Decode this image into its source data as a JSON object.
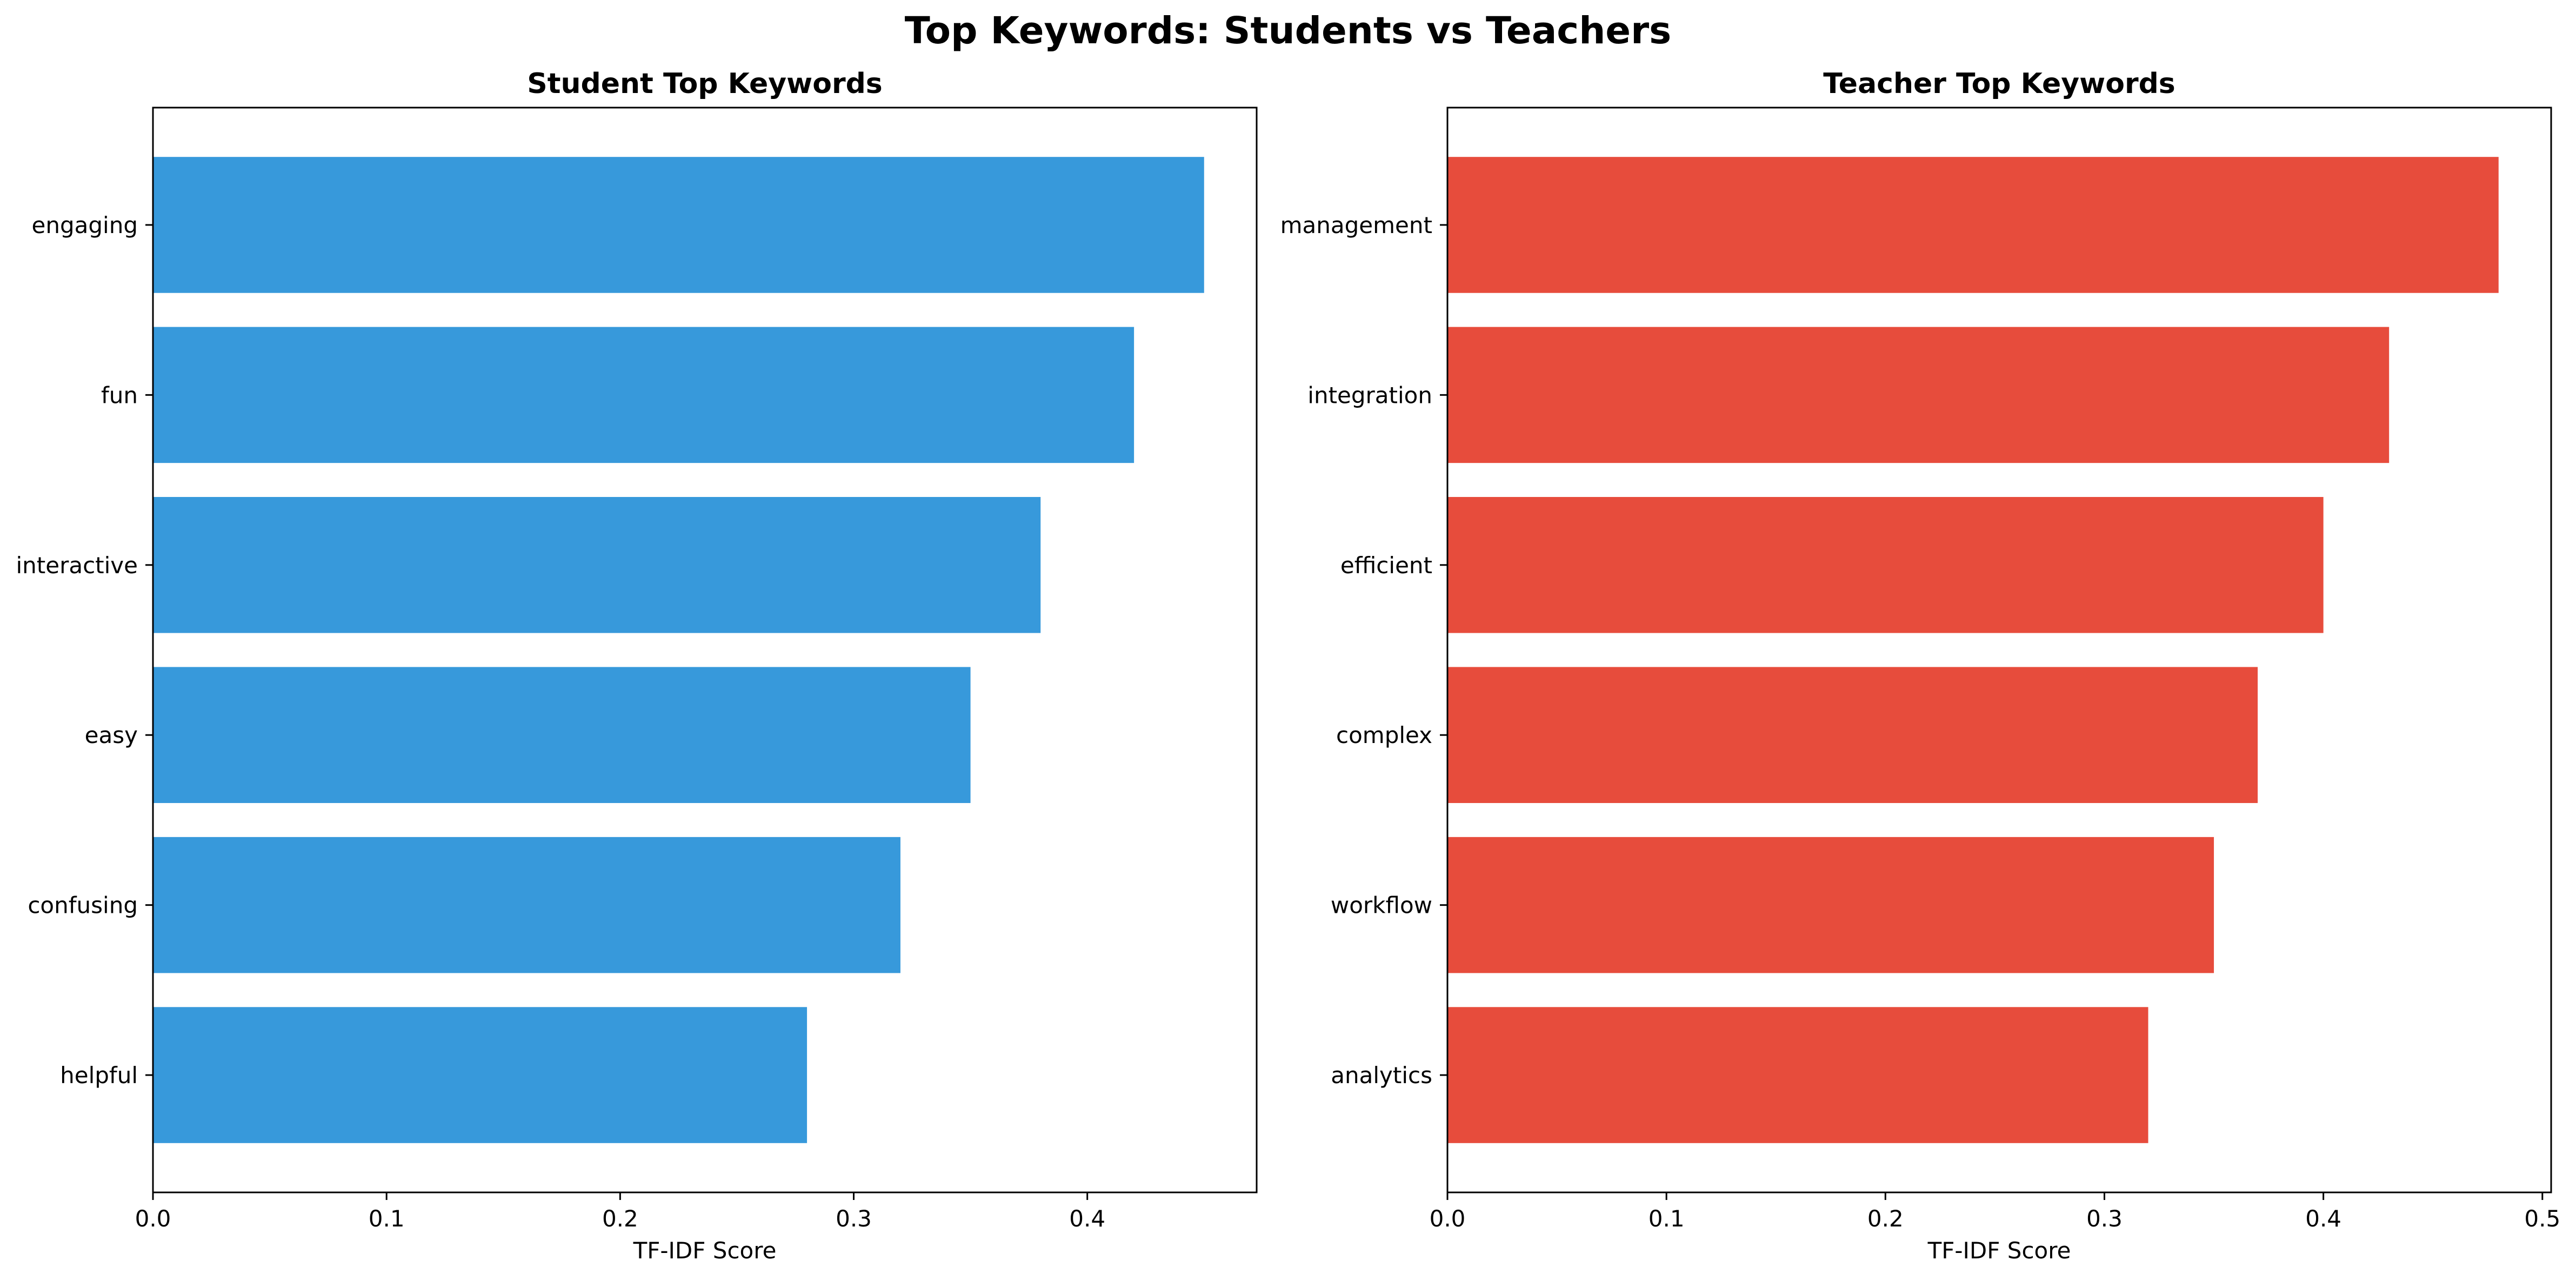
{
  "figure": {
    "title": "Top Keywords: Students vs Teachers"
  },
  "chart_data": [
    {
      "type": "bar",
      "orientation": "horizontal",
      "title": "Student Top Keywords",
      "xlabel": "TF-IDF Score",
      "ylabel": "",
      "categories": [
        "engaging",
        "fun",
        "interactive",
        "easy",
        "confusing",
        "helpful"
      ],
      "values": [
        0.45,
        0.42,
        0.38,
        0.35,
        0.32,
        0.28
      ],
      "xlim": [
        0,
        0.4725
      ],
      "xticks": [
        0.0,
        0.1,
        0.2,
        0.3,
        0.4
      ],
      "xtick_labels": [
        "0.0",
        "0.1",
        "0.2",
        "0.3",
        "0.4"
      ],
      "color": "#3799DB",
      "grid": false,
      "legend": "none"
    },
    {
      "type": "bar",
      "orientation": "horizontal",
      "title": "Teacher Top Keywords",
      "xlabel": "TF-IDF Score",
      "ylabel": "",
      "categories": [
        "management",
        "integration",
        "efficient",
        "complex",
        "workflow",
        "analytics"
      ],
      "values": [
        0.48,
        0.43,
        0.4,
        0.37,
        0.35,
        0.32
      ],
      "xlim": [
        0,
        0.504
      ],
      "xticks": [
        0.0,
        0.1,
        0.2,
        0.3,
        0.4,
        0.5
      ],
      "xtick_labels": [
        "0.0",
        "0.1",
        "0.2",
        "0.3",
        "0.4",
        "0.5"
      ],
      "color": "#E74C3C",
      "grid": false,
      "legend": "none"
    }
  ]
}
